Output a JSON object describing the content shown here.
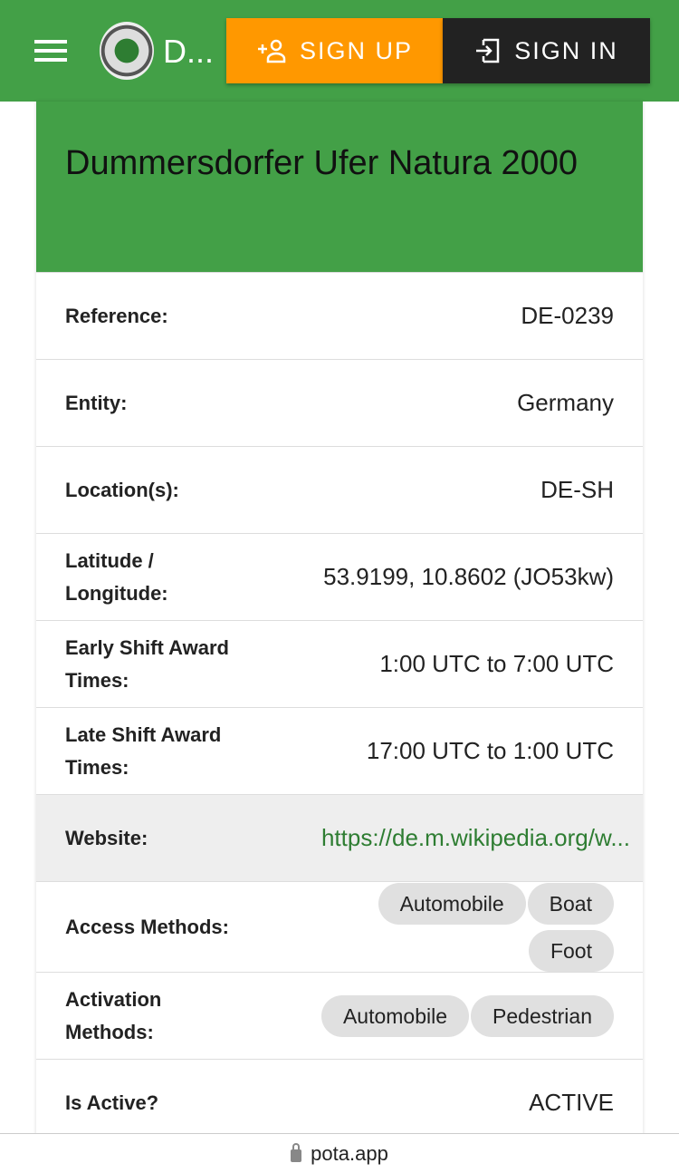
{
  "header": {
    "site_title": "D...",
    "signup": "SIGN UP",
    "signin": "SIGN IN",
    "color": "#43a047"
  },
  "park": {
    "name": "Dummersdorfer Ufer Natura 2000",
    "rows": [
      {
        "label": "Reference:",
        "value": "DE-0239"
      },
      {
        "label": "Entity:",
        "value": "Germany"
      },
      {
        "label": "Location(s):",
        "value": "DE-SH"
      },
      {
        "label": "Latitude / Longitude:",
        "value": "53.9199, 10.8602 (JO53kw)"
      },
      {
        "label": "Early Shift Award Times:",
        "value": "1:00 UTC to 7:00 UTC"
      },
      {
        "label": "Late Shift Award Times:",
        "value": "17:00 UTC to 1:00 UTC"
      },
      {
        "label": "Website:",
        "value": "https://de.m.wikipedia.org/w..."
      },
      {
        "label": "Access Methods:",
        "chips": [
          "Automobile",
          "Boat",
          "Foot"
        ]
      },
      {
        "label": "Activation Methods:",
        "chips": [
          "Automobile",
          "Pedestrian"
        ]
      },
      {
        "label": "Is Active?",
        "value": "ACTIVE"
      }
    ]
  },
  "browser": {
    "domain": "pota.app"
  }
}
